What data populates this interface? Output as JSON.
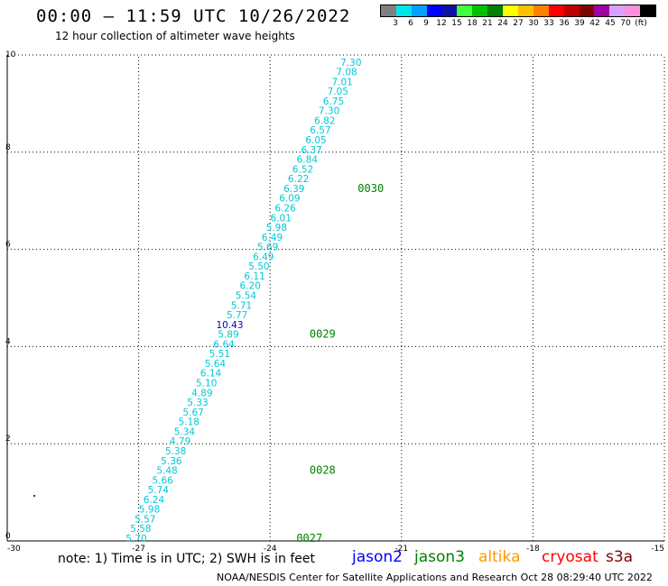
{
  "header": {
    "title": "00:00 – 11:59 UTC 10/26/2022",
    "subtitle": "12 hour collection of altimeter wave heights"
  },
  "colorbar": {
    "colors": [
      "#808080",
      "#00e5e5",
      "#00a0ff",
      "#0000ff",
      "#1010a0",
      "#40ff40",
      "#00c000",
      "#008000",
      "#ffff00",
      "#ffc000",
      "#ff8000",
      "#ff0000",
      "#c00000",
      "#800000",
      "#a000a0",
      "#d8a0ff",
      "#ff90e0",
      "#000000"
    ],
    "labels": [
      "3",
      "6",
      "9",
      "12",
      "15",
      "18",
      "21",
      "24",
      "27",
      "30",
      "33",
      "36",
      "39",
      "42",
      "45",
      "70",
      "(ft)"
    ]
  },
  "chart_data": {
    "type": "scatter",
    "title": "12 hour collection of altimeter wave heights",
    "xlim": [
      -30,
      -15
    ],
    "ylim": [
      0,
      10
    ],
    "xticks": [
      "-30",
      "-27",
      "-24",
      "-21",
      "-18",
      "-15"
    ],
    "yticks": [
      "0",
      "2",
      "4",
      "6",
      "8",
      "10"
    ],
    "grid": true,
    "points": [
      {
        "x": -22.2,
        "y": 9.8,
        "v": "7.30",
        "c": "#00c8d8"
      },
      {
        "x": -22.3,
        "y": 9.6,
        "v": "7.08",
        "c": "#00c8d8"
      },
      {
        "x": -22.4,
        "y": 9.4,
        "v": "7.01",
        "c": "#00c8d8"
      },
      {
        "x": -22.5,
        "y": 9.2,
        "v": "7.05",
        "c": "#00c8d8"
      },
      {
        "x": -22.6,
        "y": 9.0,
        "v": "6.75",
        "c": "#00c8d8"
      },
      {
        "x": -22.7,
        "y": 8.8,
        "v": "7.30",
        "c": "#00c8d8"
      },
      {
        "x": -22.8,
        "y": 8.6,
        "v": "6.82",
        "c": "#00c8d8"
      },
      {
        "x": -22.9,
        "y": 8.4,
        "v": "6.57",
        "c": "#00c8d8"
      },
      {
        "x": -23.0,
        "y": 8.2,
        "v": "6.05",
        "c": "#00c8d8"
      },
      {
        "x": -23.1,
        "y": 8.0,
        "v": "6.37",
        "c": "#00c8d8"
      },
      {
        "x": -23.2,
        "y": 7.8,
        "v": "6.84",
        "c": "#00c8d8"
      },
      {
        "x": -23.3,
        "y": 7.6,
        "v": "6.52",
        "c": "#00c8d8"
      },
      {
        "x": -23.4,
        "y": 7.4,
        "v": "6.22",
        "c": "#00c8d8"
      },
      {
        "x": -23.5,
        "y": 7.2,
        "v": "6.39",
        "c": "#00c8d8"
      },
      {
        "x": -23.6,
        "y": 7.0,
        "v": "6.09",
        "c": "#00c8d8"
      },
      {
        "x": -23.7,
        "y": 6.8,
        "v": "6.26",
        "c": "#00c8d8"
      },
      {
        "x": -23.8,
        "y": 6.6,
        "v": "6.01",
        "c": "#00c8d8"
      },
      {
        "x": -23.9,
        "y": 6.4,
        "v": "5.98",
        "c": "#00c8d8"
      },
      {
        "x": -24.0,
        "y": 6.2,
        "v": "6.49",
        "c": "#00c8d8"
      },
      {
        "x": -24.1,
        "y": 6.0,
        "v": "5.69",
        "c": "#00c8d8"
      },
      {
        "x": -24.2,
        "y": 5.8,
        "v": "6.49",
        "c": "#00c8d8"
      },
      {
        "x": -24.3,
        "y": 5.6,
        "v": "5.50",
        "c": "#00c8d8"
      },
      {
        "x": -24.4,
        "y": 5.4,
        "v": "6.11",
        "c": "#00c8d8"
      },
      {
        "x": -24.5,
        "y": 5.2,
        "v": "6.20",
        "c": "#00c8d8"
      },
      {
        "x": -24.6,
        "y": 5.0,
        "v": "5.54",
        "c": "#00c8d8"
      },
      {
        "x": -24.7,
        "y": 4.8,
        "v": "5.71",
        "c": "#00c8d8"
      },
      {
        "x": -24.8,
        "y": 4.6,
        "v": "5.77",
        "c": "#00c8d8"
      },
      {
        "x": -24.9,
        "y": 4.4,
        "v": "10.43",
        "c": "#0000c0"
      },
      {
        "x": -25.0,
        "y": 4.2,
        "v": "5.89",
        "c": "#00c8d8"
      },
      {
        "x": -25.1,
        "y": 4.0,
        "v": "6.64",
        "c": "#00c8d8"
      },
      {
        "x": -25.2,
        "y": 3.8,
        "v": "5.51",
        "c": "#00c8d8"
      },
      {
        "x": -25.3,
        "y": 3.6,
        "v": "5.64",
        "c": "#00c8d8"
      },
      {
        "x": -25.4,
        "y": 3.4,
        "v": "6.14",
        "c": "#00c8d8"
      },
      {
        "x": -25.5,
        "y": 3.2,
        "v": "5.10",
        "c": "#00c8d8"
      },
      {
        "x": -25.6,
        "y": 3.0,
        "v": "4.89",
        "c": "#00c8d8"
      },
      {
        "x": -25.7,
        "y": 2.8,
        "v": "5.33",
        "c": "#00c8d8"
      },
      {
        "x": -25.8,
        "y": 2.6,
        "v": "5.67",
        "c": "#00c8d8"
      },
      {
        "x": -25.9,
        "y": 2.4,
        "v": "5.18",
        "c": "#00c8d8"
      },
      {
        "x": -26.0,
        "y": 2.2,
        "v": "5.34",
        "c": "#00c8d8"
      },
      {
        "x": -26.1,
        "y": 2.0,
        "v": "4.79",
        "c": "#00c8d8"
      },
      {
        "x": -26.2,
        "y": 1.8,
        "v": "5.38",
        "c": "#00c8d8"
      },
      {
        "x": -26.3,
        "y": 1.6,
        "v": "5.36",
        "c": "#00c8d8"
      },
      {
        "x": -26.4,
        "y": 1.4,
        "v": "5.48",
        "c": "#00c8d8"
      },
      {
        "x": -26.5,
        "y": 1.2,
        "v": "5.66",
        "c": "#00c8d8"
      },
      {
        "x": -26.6,
        "y": 1.0,
        "v": "5.74",
        "c": "#00c8d8"
      },
      {
        "x": -26.7,
        "y": 0.8,
        "v": "6.24",
        "c": "#00c8d8"
      },
      {
        "x": -26.8,
        "y": 0.6,
        "v": "5.98",
        "c": "#00c8d8"
      },
      {
        "x": -26.9,
        "y": 0.4,
        "v": "5.57",
        "c": "#00c8d8"
      },
      {
        "x": -27.0,
        "y": 0.2,
        "v": "5.58",
        "c": "#00c8d8"
      },
      {
        "x": -27.1,
        "y": 0.0,
        "v": "5.70",
        "c": "#00c8d8"
      }
    ],
    "time_labels": [
      {
        "x": -22.0,
        "y": 7.2,
        "v": "0030"
      },
      {
        "x": -23.1,
        "y": 4.2,
        "v": "0029"
      },
      {
        "x": -23.1,
        "y": 1.4,
        "v": "0028"
      },
      {
        "x": -23.4,
        "y": 0.0,
        "v": "0027"
      }
    ]
  },
  "notes": {
    "note": "note:  1) Time is in UTC; 2) SWH is in feet",
    "legend": [
      {
        "label": "jason2",
        "color": "#0000ff"
      },
      {
        "label": "jason3",
        "color": "#008000"
      },
      {
        "label": "altika",
        "color": "#ff9900"
      },
      {
        "label": "cryosat",
        "color": "#ff0000"
      },
      {
        "label": "s3a",
        "color": "#800000"
      }
    ],
    "footer": "NOAA/NESDIS Center for Satellite Applications and Research     Oct 28 08:29:40 UTC 2022"
  }
}
